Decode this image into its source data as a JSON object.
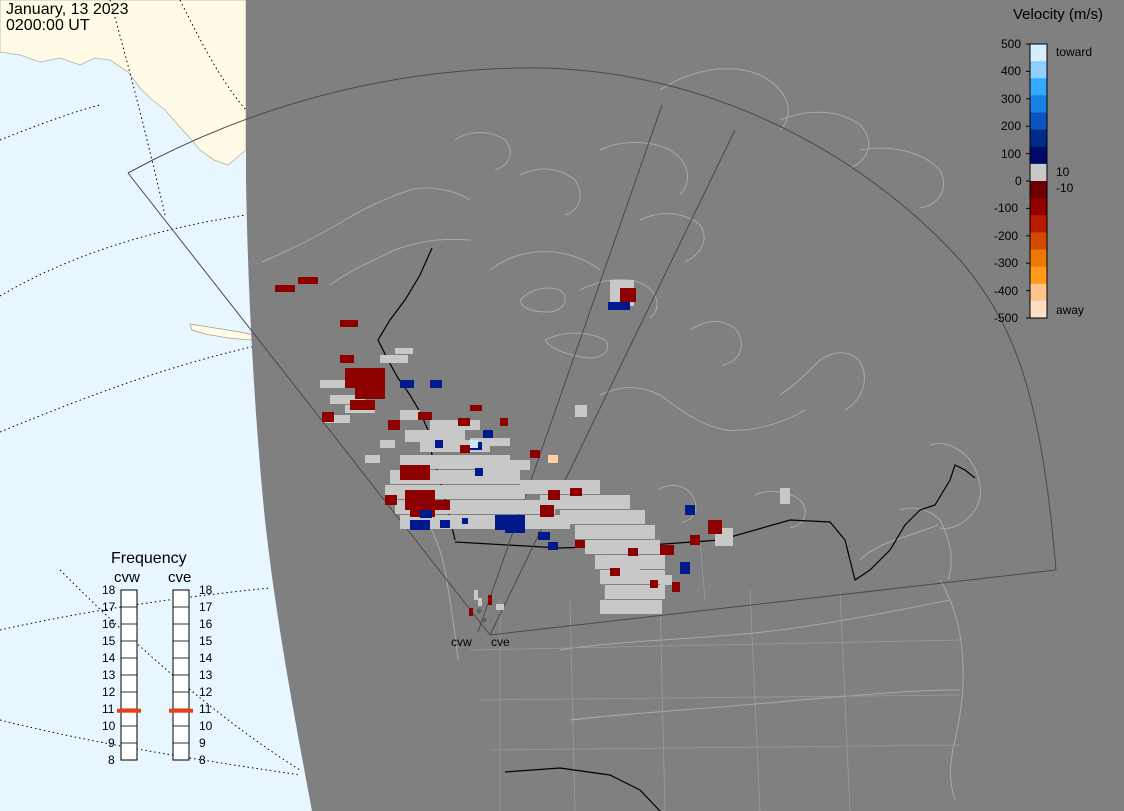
{
  "header": {
    "date": "January, 13 2023",
    "time": "0200:00 UT"
  },
  "velocity_scale": {
    "title": "Velocity (m/s)",
    "ticks": [
      "500",
      "400",
      "300",
      "200",
      "100",
      "0",
      "-100",
      "-200",
      "-300",
      "-400",
      "-500"
    ],
    "inner_ticks": {
      "positive": "10",
      "negative": "-10"
    },
    "toward_label": "toward",
    "away_label": "away",
    "colors_top_to_bottom": [
      "#d6eeff",
      "#8fd0ff",
      "#36a9ff",
      "#1a7fe6",
      "#0a55c0",
      "#002b8c",
      "#000a66",
      "#c8c8c8",
      "#6b0000",
      "#940000",
      "#b81a00",
      "#d24a00",
      "#ec7a00",
      "#ff9a1a",
      "#ffc48a",
      "#ffe0c4"
    ]
  },
  "radar_sites": [
    {
      "id": "cvw",
      "label": "cvw"
    },
    {
      "id": "cve",
      "label": "cve"
    }
  ],
  "frequency_panel": {
    "title": "Frequency",
    "columns": [
      {
        "label": "cvw",
        "current_mhz": 10.9
      },
      {
        "label": "cve",
        "current_mhz": 10.9
      }
    ],
    "ticks": [
      "18",
      "17",
      "16",
      "15",
      "14",
      "13",
      "12",
      "11",
      "10",
      "9",
      "8"
    ],
    "indicator_color": "#e84010"
  },
  "colors": {
    "ocean": "#e8f6ff",
    "land_lit": "#fffbe6",
    "night": "#808080",
    "outline": "#a8a8a8",
    "border": "#000000",
    "fov": "#505050",
    "ground_scatter": "#c8c8c8",
    "toward": "#001a8c",
    "away": "#8c0000"
  }
}
